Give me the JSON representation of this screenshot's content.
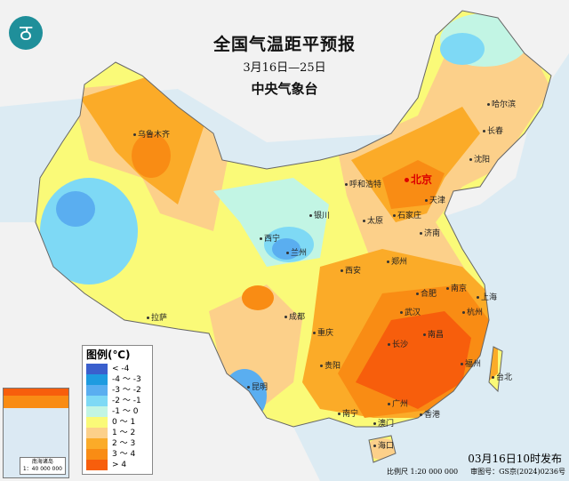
{
  "title": "全国气温距平预报",
  "subtitle": "3月16日—25日",
  "organization": "中央气象台",
  "logo_icon": "cma-logo",
  "legend": {
    "title": "图例(℃)",
    "items": [
      {
        "label": "< -4",
        "color": "#3a5fcd"
      },
      {
        "label": "-4 ～ -3",
        "color": "#1e9be0"
      },
      {
        "label": "-3 ～ -2",
        "color": "#5aaef0"
      },
      {
        "label": "-2 ～ -1",
        "color": "#7ed9f5"
      },
      {
        "label": "-1 ～ 0",
        "color": "#c2f5e4"
      },
      {
        "label": "0 ～ 1",
        "color": "#fafa78"
      },
      {
        "label": "1 ～ 2",
        "color": "#fcd08a"
      },
      {
        "label": "2 ～ 3",
        "color": "#fbab28"
      },
      {
        "label": "3 ～ 4",
        "color": "#f98c14"
      },
      {
        "label": "> 4",
        "color": "#f75e0c"
      }
    ]
  },
  "cities": [
    "乌鲁木齐",
    "哈尔滨",
    "长春",
    "沈阳",
    "呼和浩特",
    "北京",
    "天津",
    "银川",
    "太原",
    "石家庄",
    "济南",
    "西宁",
    "兰州",
    "郑州",
    "西安",
    "合肥",
    "南京",
    "上海",
    "拉萨",
    "成都",
    "武汉",
    "杭州",
    "重庆",
    "长沙",
    "南昌",
    "贵阳",
    "福州",
    "台北",
    "昆明",
    "广州",
    "南宁",
    "澳门",
    "香港",
    "海口"
  ],
  "inset": {
    "label": "南海诸岛",
    "scale": "1：40 000 000"
  },
  "issue_time": "03月16日10时发布",
  "scale": "比例尺 1:20 000 000",
  "review_number": "审图号：GS京(2024)0236号"
}
